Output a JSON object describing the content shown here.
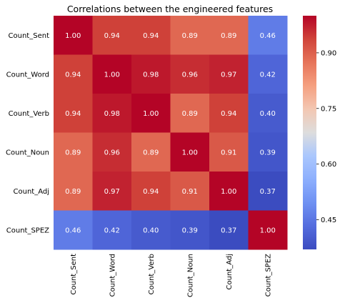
{
  "chart_data": {
    "type": "heatmap",
    "title": "Correlations between the engineered features",
    "xlabel": "",
    "ylabel": "",
    "x_categories": [
      "Count_Sent",
      "Count_Word",
      "Count_Verb",
      "Count_Noun",
      "Count_Adj",
      "Count_SPEZ"
    ],
    "y_categories": [
      "Count_Sent",
      "Count_Word",
      "Count_Verb",
      "Count_Noun",
      "Count_Adj",
      "Count_SPEZ"
    ],
    "values": [
      [
        1.0,
        0.94,
        0.94,
        0.89,
        0.89,
        0.46
      ],
      [
        0.94,
        1.0,
        0.98,
        0.96,
        0.97,
        0.42
      ],
      [
        0.94,
        0.98,
        1.0,
        0.89,
        0.94,
        0.4
      ],
      [
        0.89,
        0.96,
        0.89,
        1.0,
        0.91,
        0.39
      ],
      [
        0.89,
        0.97,
        0.94,
        0.91,
        1.0,
        0.37
      ],
      [
        0.46,
        0.42,
        0.4,
        0.39,
        0.37,
        1.0
      ]
    ],
    "cell_labels": [
      [
        "1.00",
        "0.94",
        "0.94",
        "0.89",
        "0.89",
        "0.46"
      ],
      [
        "0.94",
        "1.00",
        "0.98",
        "0.96",
        "0.97",
        "0.42"
      ],
      [
        "0.94",
        "0.98",
        "1.00",
        "0.89",
        "0.94",
        "0.40"
      ],
      [
        "0.89",
        "0.96",
        "0.89",
        "1.00",
        "0.91",
        "0.39"
      ],
      [
        "0.89",
        "0.97",
        "0.94",
        "0.91",
        "1.00",
        "0.37"
      ],
      [
        "0.46",
        "0.42",
        "0.40",
        "0.39",
        "0.37",
        "1.00"
      ]
    ],
    "colormap": "coolwarm",
    "color_range": [
      0.37,
      1.0
    ],
    "colorbar": {
      "ticks": [
        0.45,
        0.6,
        0.75,
        0.9
      ],
      "tick_labels": [
        "0.45",
        "0.60",
        "0.75",
        "0.90"
      ],
      "placement": "right"
    },
    "annotation_colors": {
      "on_dark": "#ffffff",
      "on_light": "#262626"
    }
  }
}
